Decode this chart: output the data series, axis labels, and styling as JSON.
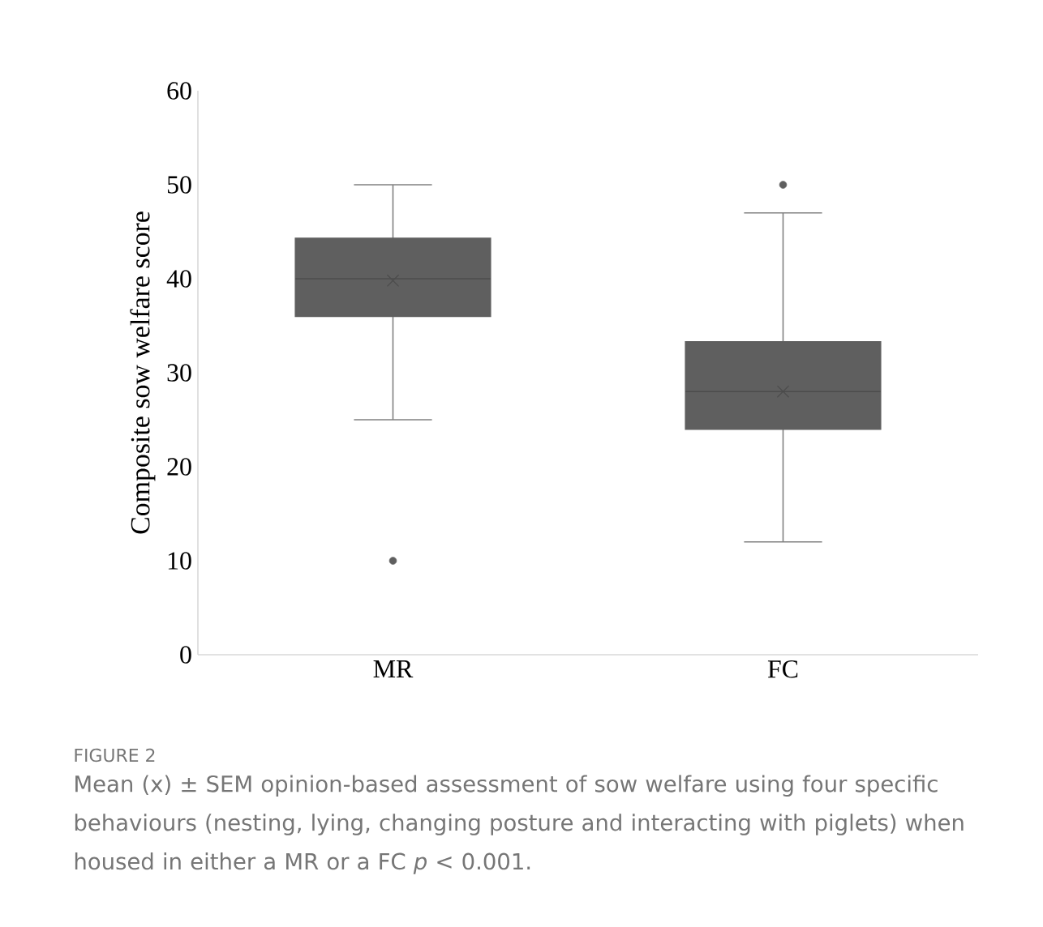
{
  "chart_data": {
    "type": "box",
    "title": "FIGURE 2",
    "subtitle": "Mean (x) ± SEM opinion-based assessment of sow welfare using four specific behaviours (nesting, lying, changing posture and interacting with piglets) when housed in either a MR or a FC *p* < 0.001.",
    "ylabel": "Composite sow welfare score",
    "categories": [
      "MR",
      "FC"
    ],
    "series": [
      {
        "color": "#5f5f5f",
        "boxes": [
          {
            "low": 25,
            "q1": 36,
            "median": 40,
            "q3": 44.3,
            "high": 50,
            "mean": 39.8,
            "outliers": [
              10
            ]
          },
          {
            "low": 12,
            "q1": 24,
            "median": 28,
            "q3": 33.3,
            "high": 47,
            "mean": 28,
            "outliers": [
              50
            ]
          }
        ]
      }
    ],
    "ylim": [
      0,
      60
    ],
    "yticks": [
      0,
      10,
      20,
      30,
      40,
      50,
      60
    ]
  }
}
